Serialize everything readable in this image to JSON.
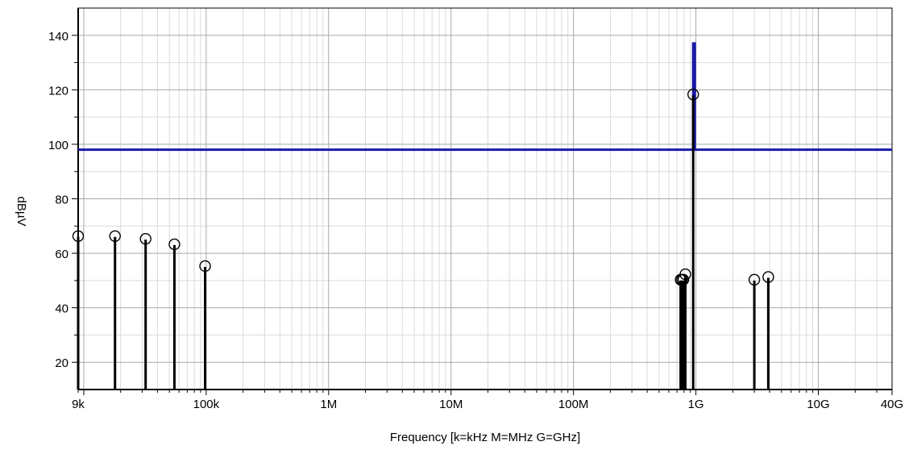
{
  "chart_data": {
    "type": "line",
    "xlabel": "Frequency [k=kHz M=MHz G=GHz]",
    "ylabel": "dBµV",
    "xscale": "log",
    "xlim": [
      9000,
      40000000000
    ],
    "ylim": [
      10,
      150
    ],
    "grid": true,
    "x_ticks": [
      {
        "value": 9000,
        "label": "9k"
      },
      {
        "value": 100000,
        "label": "100k"
      },
      {
        "value": 1000000,
        "label": "1M"
      },
      {
        "value": 10000000,
        "label": "10M"
      },
      {
        "value": 100000000,
        "label": "100M"
      },
      {
        "value": 1000000000,
        "label": "1G"
      },
      {
        "value": 10000000000,
        "label": "10G"
      },
      {
        "value": 40000000000,
        "label": "40G"
      }
    ],
    "y_ticks": [
      20,
      40,
      60,
      80,
      100,
      120,
      140
    ],
    "limit_line": {
      "color": "#1a1aa8",
      "segments": [
        {
          "x_start": 9000,
          "x_end": 950000000,
          "y": 98
        },
        {
          "x_start": 950000000,
          "x_end": 980000000,
          "y": 137
        },
        {
          "x_start": 980000000,
          "x_end": 40000000000,
          "y": 98
        }
      ]
    },
    "measurements": {
      "color": "#000000",
      "points": [
        {
          "x": 9000,
          "y": 66
        },
        {
          "x": 18000,
          "y": 66
        },
        {
          "x": 32000,
          "y": 65
        },
        {
          "x": 55000,
          "y": 63
        },
        {
          "x": 98000,
          "y": 55
        },
        {
          "x": 750000000,
          "y": 50
        },
        {
          "x": 770000000,
          "y": 50
        },
        {
          "x": 790000000,
          "y": 50
        },
        {
          "x": 820000000,
          "y": 52
        },
        {
          "x": 950000000,
          "y": 118
        },
        {
          "x": 3000000000,
          "y": 50
        },
        {
          "x": 3900000000,
          "y": 51
        }
      ]
    }
  }
}
